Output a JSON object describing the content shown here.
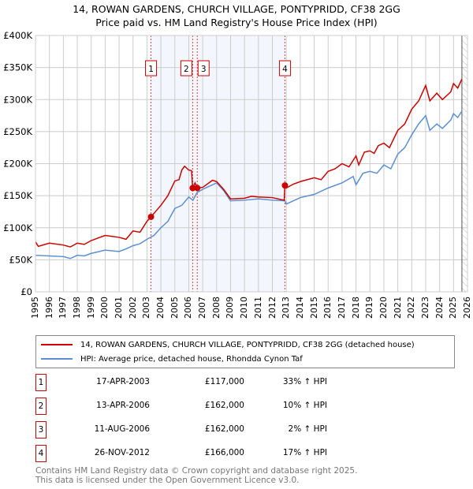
{
  "chart_data": {
    "type": "line",
    "title": "14, ROWAN GARDENS, CHURCH VILLAGE, PONTYPRIDD, CF38 2GG",
    "subtitle": "Price paid vs. HM Land Registry's House Price Index (HPI)",
    "xlim": [
      1995,
      2026
    ],
    "ylim": [
      0,
      400000
    ],
    "x_ticks": [
      "1995",
      "1996",
      "1997",
      "1998",
      "1999",
      "2000",
      "2001",
      "2002",
      "2003",
      "2004",
      "2005",
      "2006",
      "2007",
      "2008",
      "2009",
      "2010",
      "2011",
      "2012",
      "2013",
      "2014",
      "2015",
      "2016",
      "2017",
      "2018",
      "2019",
      "2020",
      "2021",
      "2022",
      "2023",
      "2024",
      "2025",
      "2026"
    ],
    "y_ticks": [
      {
        "v": 0,
        "label": "£0"
      },
      {
        "v": 50000,
        "label": "£50K"
      },
      {
        "v": 100000,
        "label": "£100K"
      },
      {
        "v": 150000,
        "label": "£150K"
      },
      {
        "v": 200000,
        "label": "£200K"
      },
      {
        "v": 250000,
        "label": "£250K"
      },
      {
        "v": 300000,
        "label": "£300K"
      },
      {
        "v": 350000,
        "label": "£350K"
      },
      {
        "v": 400000,
        "label": "£400K"
      }
    ],
    "shaded_range": [
      2003.29,
      2012.9
    ],
    "forecast_from": 2025.6,
    "series": [
      {
        "name": "14, ROWAN GARDENS, CHURCH VILLAGE, PONTYPRIDD, CF38 2GG (detached house)",
        "color": "#cc0000",
        "points": [
          [
            1995,
            78
          ],
          [
            1995.2,
            71
          ],
          [
            1996,
            76
          ],
          [
            1997,
            73
          ],
          [
            1997.5,
            70
          ],
          [
            1998,
            76
          ],
          [
            1998.5,
            74
          ],
          [
            1999,
            80
          ],
          [
            2000,
            88
          ],
          [
            2001,
            85
          ],
          [
            2001.5,
            82
          ],
          [
            2002,
            95
          ],
          [
            2002.5,
            93
          ],
          [
            2003,
            110
          ],
          [
            2003.29,
            117
          ],
          [
            2004,
            135
          ],
          [
            2004.5,
            150
          ],
          [
            2005,
            173
          ],
          [
            2005.3,
            175
          ],
          [
            2005.5,
            190
          ],
          [
            2005.7,
            196
          ],
          [
            2006,
            190
          ],
          [
            2006.2,
            189
          ],
          [
            2006.28,
            162
          ],
          [
            2006.45,
            170
          ],
          [
            2006.61,
            162
          ],
          [
            2007,
            163
          ],
          [
            2007.7,
            174
          ],
          [
            2008,
            172
          ],
          [
            2008.5,
            160
          ],
          [
            2009,
            145
          ],
          [
            2010,
            146
          ],
          [
            2010.5,
            149
          ],
          [
            2011,
            148
          ],
          [
            2012,
            147
          ],
          [
            2012.85,
            143
          ],
          [
            2012.9,
            166
          ],
          [
            2013,
            162
          ],
          [
            2013.5,
            168
          ],
          [
            2014,
            172
          ],
          [
            2015,
            178
          ],
          [
            2015.5,
            175
          ],
          [
            2016,
            188
          ],
          [
            2016.5,
            192
          ],
          [
            2017,
            200
          ],
          [
            2017.5,
            195
          ],
          [
            2018,
            212
          ],
          [
            2018.2,
            198
          ],
          [
            2018.6,
            218
          ],
          [
            2019,
            220
          ],
          [
            2019.3,
            216
          ],
          [
            2019.6,
            228
          ],
          [
            2020,
            232
          ],
          [
            2020.4,
            225
          ],
          [
            2021,
            252
          ],
          [
            2021.5,
            262
          ],
          [
            2022,
            285
          ],
          [
            2022.5,
            298
          ],
          [
            2023,
            322
          ],
          [
            2023.3,
            298
          ],
          [
            2023.8,
            310
          ],
          [
            2024.2,
            300
          ],
          [
            2024.8,
            312
          ],
          [
            2025,
            325
          ],
          [
            2025.3,
            318
          ],
          [
            2025.6,
            332
          ]
        ]
      },
      {
        "name": "HPI: Average price, detached house, Rhondda Cynon Taf",
        "color": "#5b8fd0",
        "points": [
          [
            1995,
            57
          ],
          [
            1996,
            56
          ],
          [
            1997,
            55
          ],
          [
            1997.5,
            52
          ],
          [
            1998,
            57
          ],
          [
            1998.5,
            56
          ],
          [
            1999,
            60
          ],
          [
            2000,
            65
          ],
          [
            2001,
            63
          ],
          [
            2001.5,
            67
          ],
          [
            2002,
            72
          ],
          [
            2002.5,
            75
          ],
          [
            2003,
            82
          ],
          [
            2003.5,
            88
          ],
          [
            2004,
            100
          ],
          [
            2004.5,
            110
          ],
          [
            2005,
            130
          ],
          [
            2005.5,
            135
          ],
          [
            2006,
            148
          ],
          [
            2006.3,
            143
          ],
          [
            2006.6,
            155
          ],
          [
            2007,
            160
          ],
          [
            2007.5,
            165
          ],
          [
            2008,
            170
          ],
          [
            2008.5,
            158
          ],
          [
            2009,
            142
          ],
          [
            2010,
            143
          ],
          [
            2011,
            145
          ],
          [
            2012,
            143
          ],
          [
            2012.9,
            142
          ],
          [
            2013,
            137
          ],
          [
            2014,
            147
          ],
          [
            2015,
            152
          ],
          [
            2016,
            162
          ],
          [
            2017,
            170
          ],
          [
            2017.8,
            180
          ],
          [
            2018,
            167
          ],
          [
            2018.5,
            185
          ],
          [
            2019,
            188
          ],
          [
            2019.5,
            185
          ],
          [
            2020,
            198
          ],
          [
            2020.5,
            192
          ],
          [
            2021,
            215
          ],
          [
            2021.5,
            225
          ],
          [
            2022,
            245
          ],
          [
            2022.5,
            262
          ],
          [
            2023,
            275
          ],
          [
            2023.3,
            252
          ],
          [
            2023.8,
            262
          ],
          [
            2024.2,
            255
          ],
          [
            2024.8,
            268
          ],
          [
            2025,
            278
          ],
          [
            2025.3,
            272
          ],
          [
            2025.6,
            282
          ]
        ]
      }
    ],
    "sales": [
      {
        "label": "1",
        "date": "17-APR-2003",
        "x": 2003.29,
        "price": "£117,000",
        "value": 117,
        "hpi": "33% ↑ HPI"
      },
      {
        "label": "2",
        "date": "13-APR-2006",
        "x": 2006.28,
        "price": "£162,000",
        "value": 162,
        "hpi": "10% ↑ HPI"
      },
      {
        "label": "3",
        "date": "11-AUG-2006",
        "x": 2006.61,
        "price": "£162,000",
        "value": 162,
        "hpi": "2% ↑ HPI"
      },
      {
        "label": "4",
        "date": "26-NOV-2012",
        "x": 2012.9,
        "price": "£166,000",
        "value": 166,
        "hpi": "17% ↑ HPI"
      }
    ]
  },
  "footer": {
    "line1": "Contains HM Land Registry data © Crown copyright and database right 2025.",
    "line2": "This data is licensed under the Open Government Licence v3.0."
  }
}
